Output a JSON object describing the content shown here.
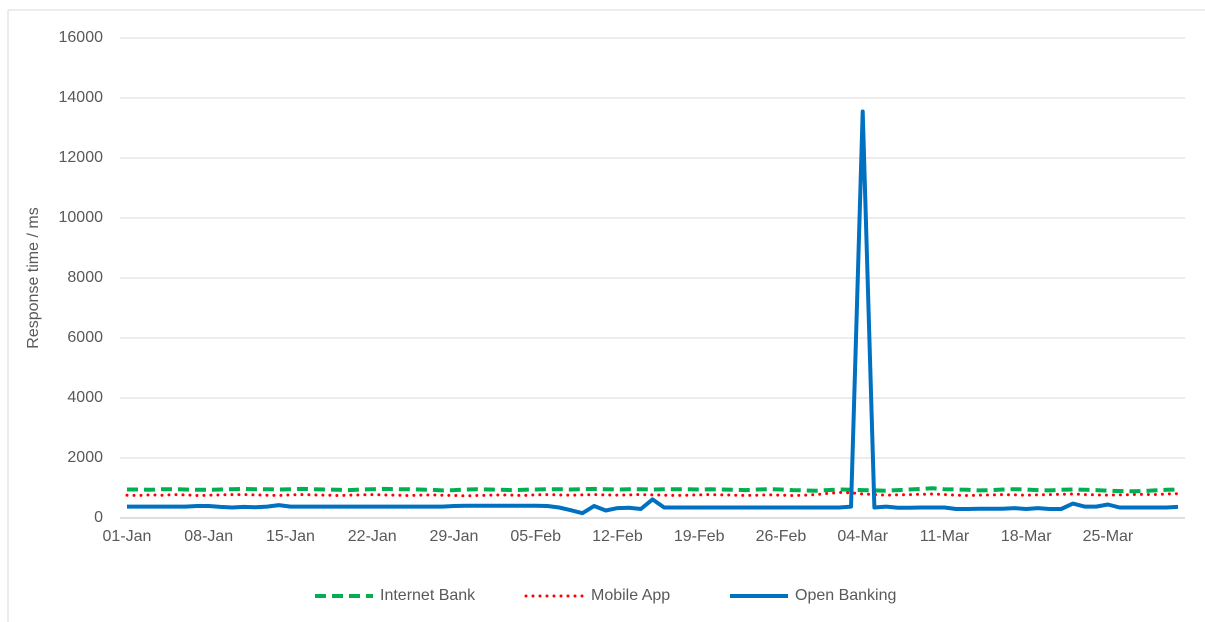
{
  "chart_data": {
    "type": "line",
    "y_label": "Response time / ms",
    "categories": [
      "01-Jan",
      null,
      null,
      null,
      null,
      null,
      null,
      "08-Jan",
      null,
      null,
      null,
      null,
      null,
      null,
      "15-Jan",
      null,
      null,
      null,
      null,
      null,
      null,
      "22-Jan",
      null,
      null,
      null,
      null,
      null,
      null,
      "29-Jan",
      null,
      null,
      null,
      null,
      null,
      null,
      "05-Feb",
      null,
      null,
      null,
      null,
      null,
      null,
      "12-Feb",
      null,
      null,
      null,
      null,
      null,
      null,
      "19-Feb",
      null,
      null,
      null,
      null,
      null,
      null,
      "26-Feb",
      null,
      null,
      null,
      null,
      null,
      null,
      "04-Mar",
      null,
      null,
      null,
      null,
      null,
      null,
      "11-Mar",
      null,
      null,
      null,
      null,
      null,
      null,
      "18-Mar",
      null,
      null,
      null,
      null,
      null,
      null,
      "25-Mar",
      null,
      null,
      null,
      null,
      null,
      null
    ],
    "series": [
      {
        "name": "Internet Bank",
        "color": "#00b050",
        "line_style": "dashed",
        "values": [
          950,
          950,
          940,
          960,
          960,
          950,
          940,
          940,
          950,
          960,
          970,
          960,
          960,
          950,
          960,
          970,
          960,
          950,
          940,
          930,
          950,
          960,
          970,
          960,
          960,
          950,
          940,
          920,
          930,
          950,
          960,
          950,
          940,
          930,
          940,
          950,
          960,
          960,
          950,
          960,
          970,
          960,
          950,
          960,
          960,
          950,
          960,
          960,
          960,
          950,
          960,
          950,
          940,
          930,
          950,
          960,
          950,
          930,
          920,
          910,
          930,
          950,
          940,
          930,
          920,
          910,
          930,
          950,
          970,
          990,
          960,
          950,
          940,
          920,
          930,
          950,
          960,
          950,
          930,
          920,
          940,
          950,
          940,
          930,
          910,
          900,
          890,
          900,
          920,
          940,
          950
        ]
      },
      {
        "name": "Mobile App",
        "color": "#ff0000",
        "line_style": "dotted",
        "values": [
          760,
          750,
          770,
          760,
          780,
          770,
          750,
          760,
          770,
          780,
          780,
          770,
          760,
          750,
          770,
          780,
          770,
          760,
          750,
          760,
          770,
          780,
          770,
          760,
          750,
          760,
          770,
          760,
          750,
          740,
          750,
          760,
          770,
          760,
          750,
          770,
          780,
          770,
          760,
          770,
          780,
          770,
          760,
          770,
          780,
          770,
          760,
          750,
          760,
          770,
          780,
          770,
          760,
          750,
          760,
          770,
          760,
          750,
          760,
          780,
          820,
          850,
          840,
          800,
          780,
          760,
          770,
          780,
          790,
          800,
          780,
          760,
          750,
          760,
          770,
          780,
          770,
          760,
          770,
          780,
          790,
          800,
          780,
          770,
          760,
          770,
          780,
          790,
          780,
          800,
          810
        ]
      },
      {
        "name": "Open Banking",
        "color": "#0070c0",
        "line_style": "solid",
        "values": [
          380,
          380,
          380,
          380,
          380,
          380,
          400,
          400,
          370,
          350,
          370,
          360,
          380,
          430,
          380,
          380,
          380,
          380,
          380,
          380,
          380,
          380,
          380,
          380,
          380,
          380,
          380,
          380,
          400,
          410,
          410,
          410,
          410,
          410,
          410,
          410,
          400,
          350,
          260,
          160,
          400,
          250,
          330,
          340,
          300,
          620,
          350,
          350,
          350,
          350,
          350,
          350,
          350,
          350,
          350,
          350,
          350,
          350,
          350,
          350,
          350,
          350,
          380,
          13550,
          350,
          380,
          340,
          340,
          350,
          350,
          350,
          300,
          300,
          310,
          310,
          310,
          330,
          300,
          330,
          300,
          300,
          480,
          380,
          380,
          450,
          350,
          350,
          350,
          350,
          350,
          370
        ]
      }
    ],
    "ylim": [
      0,
      16000
    ],
    "yticks": [
      0,
      2000,
      4000,
      6000,
      8000,
      10000,
      12000,
      14000,
      16000
    ],
    "grid": true,
    "legend": "bottom"
  }
}
